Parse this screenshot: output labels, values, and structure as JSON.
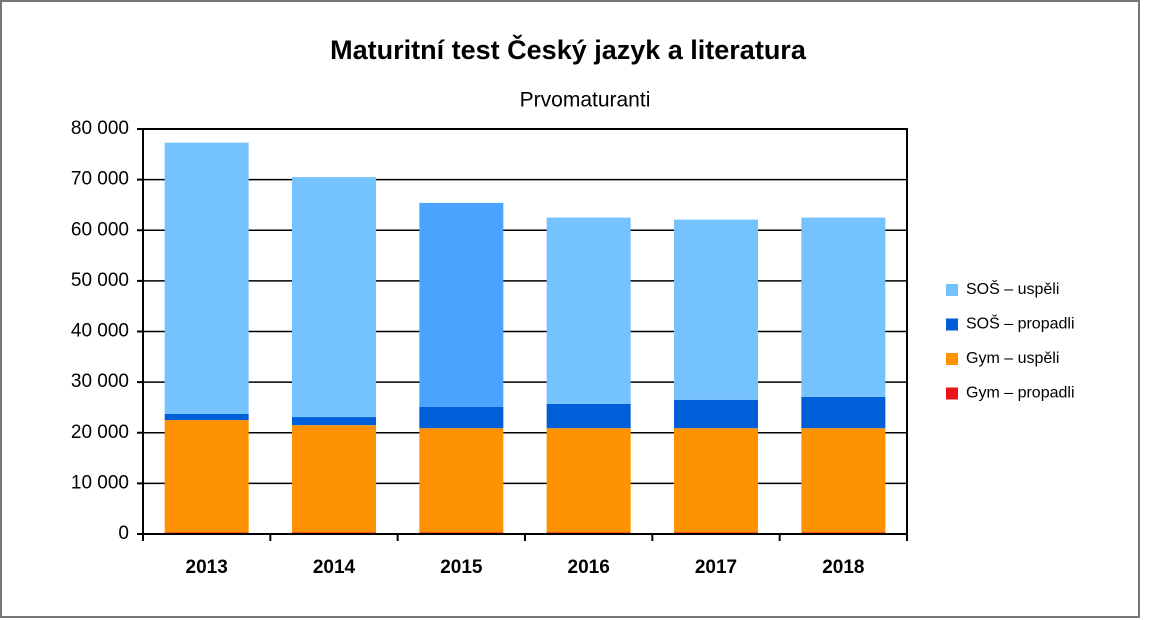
{
  "chart_data": {
    "type": "stacked_bar",
    "title": "Maturitní test Český jazyk a literatura",
    "subtitle": "Prvomaturanti",
    "categories": [
      "2013",
      "2014",
      "2015",
      "2016",
      "2017",
      "2018"
    ],
    "series": [
      {
        "name": "Gym – propadli",
        "color": "#e8141a",
        "values": [
          300,
          300,
          300,
          300,
          300,
          300
        ]
      },
      {
        "name": "Gym – uspěli",
        "color": "#ff9200",
        "values": [
          22200,
          21200,
          20600,
          20600,
          20600,
          20600
        ]
      },
      {
        "name": "SOŠ – propadli",
        "color": "#005ed8",
        "values": [
          1200,
          1600,
          4200,
          4800,
          5600,
          6200
        ]
      },
      {
        "name": "SOŠ – uspěli",
        "color": "#74c3ff",
        "colors": [
          "#74c3ff",
          "#74c3ff",
          "#4aa4ff",
          "#74c3ff",
          "#74c3ff",
          "#74c3ff"
        ],
        "values": [
          53600,
          47400,
          40300,
          36800,
          35600,
          35400
        ]
      }
    ],
    "ylim": [
      0,
      80000
    ],
    "yticks": [
      {
        "value": 0,
        "label": "0"
      },
      {
        "value": 10000,
        "label": "10 000"
      },
      {
        "value": 20000,
        "label": "20 000"
      },
      {
        "value": 30000,
        "label": "30 000"
      },
      {
        "value": 40000,
        "label": "40 000"
      },
      {
        "value": 50000,
        "label": "50 000"
      },
      {
        "value": 60000,
        "label": "60 000"
      },
      {
        "value": 70000,
        "label": "70 000"
      },
      {
        "value": 80000,
        "label": "80 000"
      }
    ],
    "grid": true,
    "legend": "right"
  }
}
